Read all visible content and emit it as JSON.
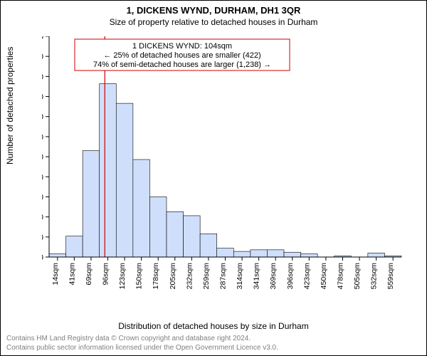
{
  "header": {
    "address": "1, DICKENS WYND, DURHAM, DH1 3QR",
    "subtitle": "Size of property relative to detached houses in Durham"
  },
  "axes": {
    "ylabel": "Number of detached properties",
    "xlabel": "Distribution of detached houses by size in Durham"
  },
  "chart": {
    "type": "histogram",
    "background_color": "#ffffff",
    "bar_fill": "#cfdffb",
    "bar_stroke": "#000000",
    "ref_line_color": "#cc0000",
    "ylim": [
      0,
      550
    ],
    "ytick_step": 50,
    "x_categories": [
      "14sqm",
      "41sqm",
      "69sqm",
      "96sqm",
      "123sqm",
      "150sqm",
      "178sqm",
      "205sqm",
      "232sqm",
      "259sqm",
      "287sqm",
      "314sqm",
      "341sqm",
      "369sqm",
      "396sqm",
      "423sqm",
      "450sqm",
      "478sqm",
      "505sqm",
      "532sqm",
      "559sqm"
    ],
    "bar_values": [
      8,
      52,
      265,
      432,
      383,
      243,
      150,
      113,
      103,
      58,
      22,
      14,
      18,
      18,
      12,
      8,
      0,
      3,
      0,
      10,
      3
    ],
    "ref_line_between_index": [
      3,
      4
    ],
    "annotation_box": {
      "line1": "1 DICKENS WYND: 104sqm",
      "line2": "← 25% of detached houses are smaller (422)",
      "line3": "74% of semi-detached houses are larger (1,238) →"
    }
  },
  "footer": {
    "line1": "Contains HM Land Registry data © Crown copyright and database right 2024.",
    "line2": "Contains public sector information licensed under the Open Government Licence v3.0."
  }
}
